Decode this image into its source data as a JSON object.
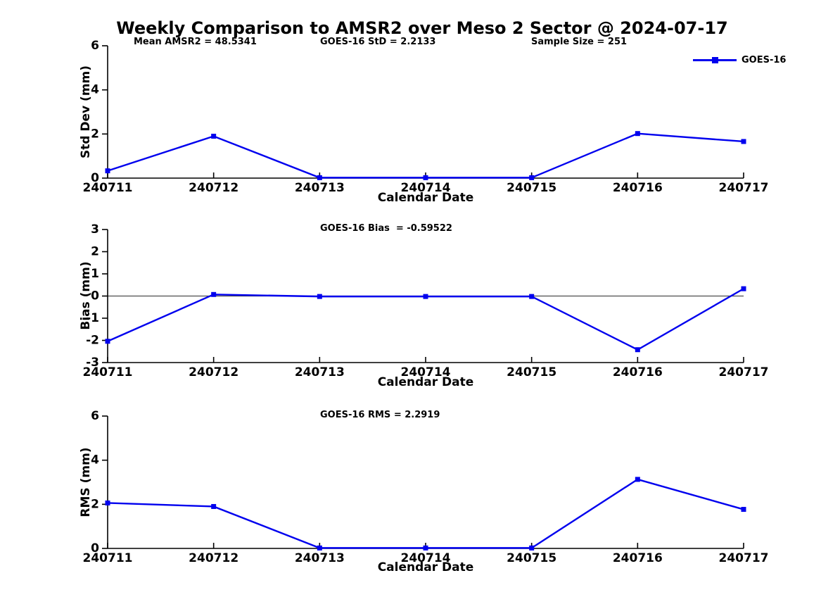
{
  "title": "Weekly Comparison to AMSR2 over Meso 2 Sector @ 2024-07-17",
  "legend": {
    "label": "GOES-16"
  },
  "colors": {
    "line": "#0000EE",
    "axis": "#000000",
    "zero_line": "#4d4d4d",
    "background": "#ffffff",
    "text": "#000000"
  },
  "chart_data": [
    {
      "type": "line",
      "ylabel": "Std Dev (mm)",
      "xlabel": "Calendar Date",
      "categories": [
        "240711",
        "240712",
        "240713",
        "240714",
        "240715",
        "240716",
        "240717"
      ],
      "series": [
        {
          "name": "GOES-16",
          "values": [
            0.33,
            1.9,
            0.02,
            0.02,
            0.02,
            2.02,
            1.66
          ]
        }
      ],
      "ylim": [
        0,
        6
      ],
      "yticks": [
        0,
        2,
        4,
        6
      ],
      "zero_line": false,
      "legend_position": "top-right",
      "annotations": [
        {
          "text": "Mean AMSR2 = 48.5341"
        },
        {
          "text": "GOES-16 StD = 2.2133"
        },
        {
          "text": "Sample Size = 251"
        }
      ]
    },
    {
      "type": "line",
      "ylabel": "Bias (mm)",
      "xlabel": "Calendar Date",
      "categories": [
        "240711",
        "240712",
        "240713",
        "240714",
        "240715",
        "240716",
        "240717"
      ],
      "series": [
        {
          "name": "GOES-16",
          "values": [
            -2.04,
            0.07,
            -0.02,
            -0.02,
            -0.02,
            -2.42,
            0.33
          ]
        }
      ],
      "ylim": [
        -3,
        3
      ],
      "yticks": [
        -3,
        -2,
        -1,
        0,
        1,
        2,
        3
      ],
      "zero_line": true,
      "annotations": [
        {
          "text": "GOES-16 Bias  = -0.59522"
        }
      ]
    },
    {
      "type": "line",
      "ylabel": "RMS (mm)",
      "xlabel": "Calendar Date",
      "categories": [
        "240711",
        "240712",
        "240713",
        "240714",
        "240715",
        "240716",
        "240717"
      ],
      "series": [
        {
          "name": "GOES-16",
          "values": [
            2.06,
            1.9,
            0.02,
            0.02,
            0.02,
            3.13,
            1.77
          ]
        }
      ],
      "ylim": [
        0,
        6
      ],
      "yticks": [
        0,
        2,
        4,
        6
      ],
      "zero_line": false,
      "annotations": [
        {
          "text": "GOES-16 RMS = 2.2919"
        }
      ]
    }
  ]
}
